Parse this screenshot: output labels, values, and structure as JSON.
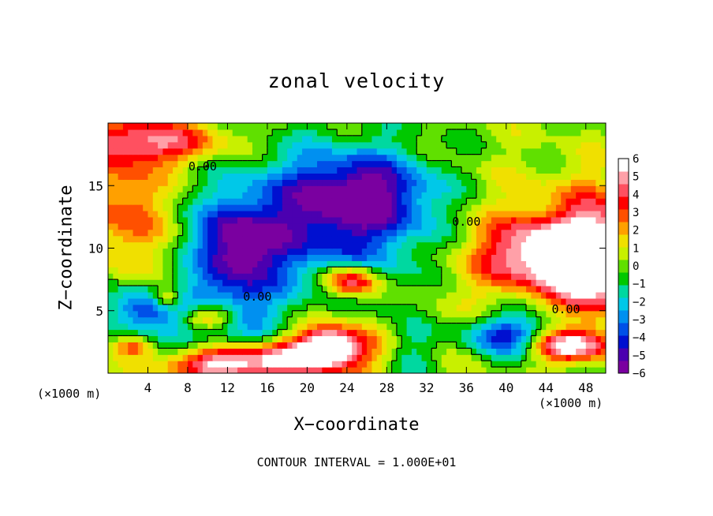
{
  "chart_data": {
    "type": "heatmap",
    "title": "zonal velocity",
    "xlabel": "X−coordinate",
    "ylabel": "Z−coordinate",
    "x_unit_label": "(×1000 m)",
    "x_unit_label_right": "(×1000 m)",
    "footer": "CONTOUR INTERVAL = 1.000E+01",
    "xlim": [
      0,
      50
    ],
    "ylim": [
      0,
      20
    ],
    "x_ticks": [
      4,
      8,
      12,
      16,
      20,
      24,
      28,
      32,
      36,
      40,
      44,
      48
    ],
    "y_ticks": [
      5,
      10,
      15
    ],
    "colorbar": {
      "min": -6,
      "max": 6,
      "ticks": [
        "6",
        "5",
        "4",
        "3",
        "2",
        "1",
        "0",
        "−1",
        "−2",
        "−3",
        "−4",
        "−5",
        "−6"
      ],
      "colors": [
        "#7a00a0",
        "#4b00b0",
        "#0010d0",
        "#0050e8",
        "#0090f0",
        "#00c8e8",
        "#00d8a0",
        "#00c800",
        "#60e000",
        "#c8f000",
        "#f0e000",
        "#ffa000",
        "#ff5000",
        "#ff0000",
        "#ff5060",
        "#ffa0a8",
        "#ffffff"
      ]
    },
    "contour_labels": [
      {
        "text": "0.00",
        "x": 9.5,
        "y": 16.2
      },
      {
        "text": "0.00",
        "x": 15,
        "y": 5.8
      },
      {
        "text": "0.00",
        "x": 36,
        "y": 11.8
      },
      {
        "text": "0.00",
        "x": 46,
        "y": 4.8
      }
    ],
    "features": [
      {
        "kind": "neg",
        "x": 22,
        "y": 12,
        "rx": 11,
        "ry": 6,
        "v": -4.6
      },
      {
        "kind": "neg",
        "x": 26,
        "y": 14.5,
        "rx": 7,
        "ry": 3,
        "v": -3.8
      },
      {
        "kind": "neg",
        "x": 13,
        "y": 10,
        "rx": 4,
        "ry": 3.5,
        "v": -5.2
      },
      {
        "kind": "neg",
        "x": 10,
        "y": 4.5,
        "rx": 6,
        "ry": 2.5,
        "v": -4.5
      },
      {
        "kind": "neg",
        "x": 3,
        "y": 5,
        "rx": 3,
        "ry": 2,
        "v": -3.5
      },
      {
        "kind": "neg",
        "x": 40,
        "y": 3,
        "rx": 5,
        "ry": 1.8,
        "v": -4.8
      },
      {
        "kind": "neg",
        "x": 30,
        "y": 2,
        "rx": 3,
        "ry": 3,
        "v": -2.5
      },
      {
        "kind": "pos",
        "x": 44,
        "y": 9.5,
        "rx": 7,
        "ry": 3,
        "v": 6.8
      },
      {
        "kind": "pos",
        "x": 49,
        "y": 9,
        "rx": 4,
        "ry": 5,
        "v": 5.5
      },
      {
        "kind": "pos",
        "x": 4,
        "y": 18.5,
        "rx": 8,
        "ry": 1.8,
        "v": 4.5
      },
      {
        "kind": "pos",
        "x": 2,
        "y": 13,
        "rx": 4,
        "ry": 5,
        "v": 3.2
      },
      {
        "kind": "pos",
        "x": 12,
        "y": 0.8,
        "rx": 6,
        "ry": 1.4,
        "v": 6.5
      },
      {
        "kind": "pos",
        "x": 24,
        "y": 2,
        "rx": 5,
        "ry": 2.5,
        "v": 4
      },
      {
        "kind": "pos",
        "x": 22,
        "y": 2,
        "rx": 2.5,
        "ry": 1.3,
        "v": 6.5
      },
      {
        "kind": "pos",
        "x": 18,
        "y": 1.5,
        "rx": 3,
        "ry": 1.5,
        "v": 3
      },
      {
        "kind": "pos",
        "x": 46,
        "y": 2.2,
        "rx": 4,
        "ry": 1.2,
        "v": 6.5
      },
      {
        "kind": "pos",
        "x": 10,
        "y": 4.5,
        "rx": 3,
        "ry": 1.2,
        "v": 6.5
      },
      {
        "kind": "pos",
        "x": 24.5,
        "y": 7.4,
        "rx": 2.8,
        "ry": 1.3,
        "v": 6.5
      },
      {
        "kind": "pos",
        "x": 6,
        "y": 6,
        "rx": 1.5,
        "ry": 0.9,
        "v": 3.5
      },
      {
        "kind": "pos",
        "x": 2.5,
        "y": 2.2,
        "rx": 2,
        "ry": 0.8,
        "v": 3.5
      },
      {
        "kind": "pos",
        "x": 40,
        "y": 14,
        "rx": 10,
        "ry": 4,
        "v": 0.8
      },
      {
        "kind": "pos",
        "x": 34,
        "y": 4,
        "rx": 4,
        "ry": 4,
        "v": 1.2
      }
    ]
  }
}
